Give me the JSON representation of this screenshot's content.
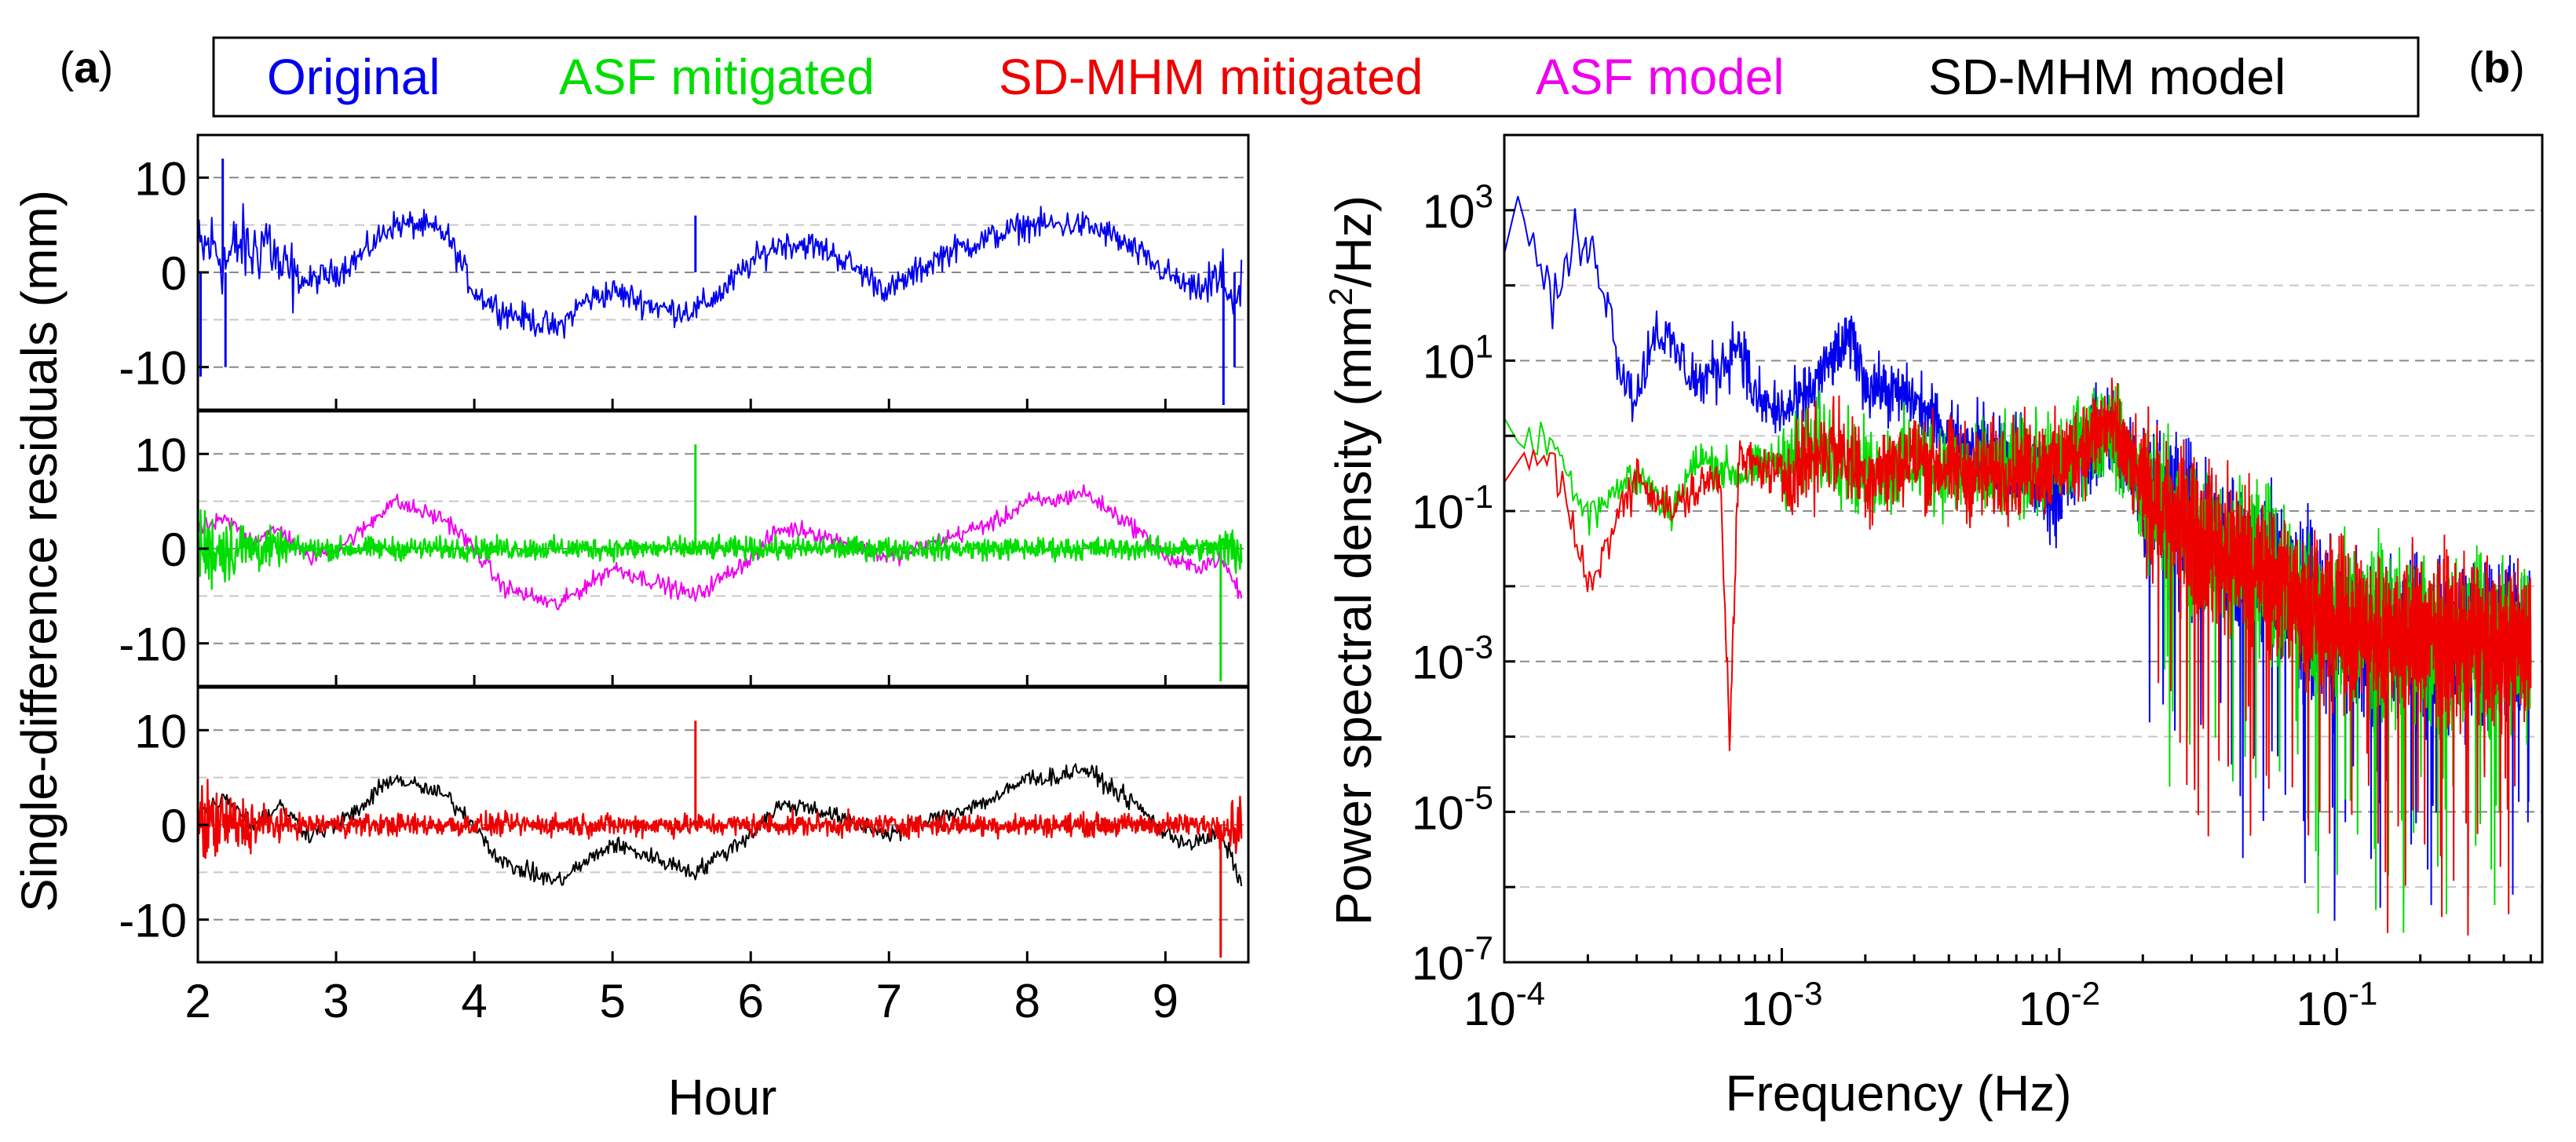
{
  "panel_labels": {
    "a": "(a)",
    "b": "(b)"
  },
  "legend": [
    {
      "name": "Original",
      "color": "#0000ee"
    },
    {
      "name": "ASF mitigated",
      "color": "#00dd00"
    },
    {
      "name": "SD-MHM mitigated",
      "color": "#ee0000"
    },
    {
      "name": "ASF model",
      "color": "#ee00ee"
    },
    {
      "name": "SD-MHM model",
      "color": "#000000"
    }
  ],
  "chart_data": [
    {
      "type": "line",
      "panel": "a",
      "title": "",
      "xlabel": "Hour",
      "ylabel": "Single-difference residuals (mm)",
      "xlim": [
        2,
        9.6
      ],
      "xticks": [
        "2",
        "3",
        "4",
        "5",
        "6",
        "7",
        "8",
        "9"
      ],
      "xtick_values": [
        2,
        3,
        4,
        5,
        6,
        7,
        8,
        9
      ],
      "ylim": [
        -14.5,
        14.5
      ],
      "yticks": [
        "10",
        "0",
        "-10"
      ],
      "ytick_values": [
        10,
        0,
        -10
      ],
      "grid": true,
      "subplots": [
        {
          "series": [
            {
              "name": "Original",
              "color": "#0000ee",
              "x": [
                2.0,
                2.1,
                2.2,
                2.3,
                2.4,
                2.5,
                2.6,
                2.8,
                3.0,
                3.2,
                3.4,
                3.6,
                3.8,
                3.9,
                4.0,
                4.2,
                4.4,
                4.6,
                4.8,
                5.0,
                5.2,
                5.4,
                5.6,
                5.8,
                6.0,
                6.2,
                6.4,
                6.6,
                6.8,
                7.0,
                7.2,
                7.4,
                7.6,
                7.8,
                8.0,
                8.2,
                8.4,
                8.6,
                8.8,
                9.0,
                9.2,
                9.4,
                9.55
              ],
              "y": [
                2,
                3,
                1,
                3,
                2,
                4,
                0,
                -1,
                0,
                2,
                5,
                5,
                4,
                1,
                -2,
                -4,
                -5,
                -6,
                -3,
                -2,
                -3,
                -4,
                -4,
                -2,
                1,
                3,
                3,
                2,
                0,
                -2,
                0,
                2,
                3,
                4,
                5,
                5,
                5,
                4,
                2,
                0,
                -2,
                -1,
                -3
              ]
            },
            {
              "name": "spikes",
              "color": "#0000ee",
              "x": [
                2.02,
                2.18,
                2.2,
                5.6,
                9.42,
                9.5
              ],
              "y": [
                -11,
                12,
                -10,
                6,
                -14,
                -10
              ]
            }
          ]
        },
        {
          "series": [
            {
              "name": "ASF model",
              "color": "#ee00ee",
              "x": [
                2.0,
                2.2,
                2.4,
                2.6,
                2.8,
                3.0,
                3.2,
                3.4,
                3.6,
                3.8,
                4.0,
                4.2,
                4.4,
                4.6,
                4.8,
                5.0,
                5.2,
                5.4,
                5.6,
                5.8,
                6.0,
                6.2,
                6.4,
                6.6,
                6.8,
                7.0,
                7.2,
                7.4,
                7.6,
                7.8,
                8.0,
                8.2,
                8.4,
                8.6,
                8.8,
                9.0,
                9.2,
                9.4,
                9.55
              ],
              "y": [
                2,
                3,
                1,
                2,
                -1,
                0,
                2,
                5,
                4,
                3,
                0,
                -4,
                -5,
                -6,
                -4,
                -2,
                -3,
                -4,
                -5,
                -3,
                -1,
                2,
                2,
                1,
                0,
                -1,
                0,
                1,
                2,
                3,
                5,
                5,
                6,
                4,
                2,
                -1,
                -2,
                -1,
                -5
              ]
            },
            {
              "name": "ASF mitigated",
              "color": "#00dd00",
              "x": [
                2.0,
                9.55
              ],
              "y": [
                0,
                0
              ],
              "noise_amplitude": [
                4,
                1
              ]
            },
            {
              "name": "spikes",
              "color": "#00dd00",
              "x": [
                5.6,
                9.4
              ],
              "y": [
                11,
                -14
              ]
            }
          ]
        },
        {
          "series": [
            {
              "name": "SD-MHM model",
              "color": "#000000",
              "x": [
                2.0,
                2.2,
                2.4,
                2.6,
                2.8,
                3.0,
                3.2,
                3.4,
                3.6,
                3.8,
                4.0,
                4.2,
                4.4,
                4.6,
                4.8,
                5.0,
                5.2,
                5.4,
                5.6,
                5.8,
                6.0,
                6.2,
                6.4,
                6.6,
                6.8,
                7.0,
                7.2,
                7.4,
                7.6,
                7.8,
                8.0,
                8.2,
                8.4,
                8.6,
                8.8,
                9.0,
                9.2,
                9.4,
                9.55
              ],
              "y": [
                1,
                3,
                0,
                2,
                -1,
                0,
                2,
                5,
                4,
                3,
                0,
                -4,
                -5,
                -6,
                -4,
                -2,
                -3,
                -4,
                -5,
                -3,
                -1,
                2,
                2,
                1,
                0,
                -1,
                0,
                1,
                2,
                3,
                5,
                5,
                6,
                4,
                2,
                -1,
                -2,
                -1,
                -6
              ]
            },
            {
              "name": "SD-MHM mitigated",
              "color": "#ee0000",
              "x": [
                2.0,
                9.55
              ],
              "y": [
                0,
                0
              ],
              "noise_amplitude": [
                4,
                1
              ]
            },
            {
              "name": "spikes",
              "color": "#ee0000",
              "x": [
                5.6,
                9.4
              ],
              "y": [
                11,
                -14
              ]
            }
          ]
        }
      ]
    },
    {
      "type": "line",
      "panel": "b",
      "title": "",
      "xlabel": "Frequency (Hz)",
      "ylabel_main": "Power spectral density (mm",
      "ylabel_sup": "2",
      "ylabel_tail": "/Hz)",
      "xscale": "log",
      "yscale": "log",
      "xlim": [
        0.0001,
        0.55
      ],
      "ylim": [
        1e-07,
        10000
      ],
      "xticks": [
        {
          "base": "10",
          "exp": "-4",
          "value": 0.0001
        },
        {
          "base": "10",
          "exp": "-3",
          "value": 0.001
        },
        {
          "base": "10",
          "exp": "-2",
          "value": 0.01
        },
        {
          "base": "10",
          "exp": "-1",
          "value": 0.1
        }
      ],
      "yticks": [
        {
          "base": "10",
          "exp": "3",
          "value": 1000
        },
        {
          "base": "10",
          "exp": "1",
          "value": 10
        },
        {
          "base": "10",
          "exp": "-1",
          "value": 0.1
        },
        {
          "base": "10",
          "exp": "-3",
          "value": 0.001
        },
        {
          "base": "10",
          "exp": "-5",
          "value": 1e-05
        },
        {
          "base": "10",
          "exp": "-7",
          "value": 1e-07
        }
      ],
      "grid": true,
      "series": [
        {
          "name": "Original",
          "color": "#0000ee",
          "x": [
            0.0001,
            0.00012,
            0.00015,
            0.00018,
            0.00022,
            0.00026,
            0.0003,
            0.00035,
            0.0004,
            0.0005,
            0.0006,
            0.0007,
            0.0008,
            0.001,
            0.0012,
            0.0015,
            0.0018,
            0.002,
            0.003,
            0.004,
            0.006,
            0.008,
            0.01,
            0.015,
            0.02,
            0.03,
            0.05,
            0.08,
            0.1,
            0.2,
            0.3,
            0.5
          ],
          "y": [
            700,
            900,
            50,
            400,
            200,
            10,
            3,
            30,
            15,
            5,
            8,
            20,
            3,
            2,
            3,
            10,
            20,
            5,
            3,
            1,
            0.5,
            0.3,
            0.2,
            1.5,
            0.2,
            0.05,
            0.02,
            0.005,
            0.003,
            0.002,
            0.002,
            0.002
          ]
        },
        {
          "name": "ASF mitigated",
          "color": "#00dd00",
          "x": [
            0.0001,
            0.00015,
            0.0002,
            0.0003,
            0.0004,
            0.0005,
            0.0007,
            0.001,
            0.0015,
            0.002,
            0.003,
            0.005,
            0.008,
            0.01,
            0.015,
            0.02,
            0.03,
            0.05,
            0.08,
            0.1,
            0.2,
            0.3,
            0.5
          ],
          "y": [
            1,
            0.8,
            0.1,
            0.3,
            0.1,
            0.5,
            0.3,
            0.5,
            0.8,
            0.3,
            0.5,
            0.3,
            0.4,
            0.4,
            1.5,
            0.2,
            0.05,
            0.02,
            0.005,
            0.003,
            0.002,
            0.002,
            0.002
          ]
        },
        {
          "name": "SD-MHM mitigated",
          "color": "#ee0000",
          "x": [
            0.0001,
            0.00015,
            0.0002,
            0.0003,
            0.0004,
            0.0005,
            0.0006,
            0.00065,
            0.0007,
            0.001,
            0.0015,
            0.002,
            0.003,
            0.005,
            0.008,
            0.01,
            0.015,
            0.02,
            0.03,
            0.05,
            0.08,
            0.1,
            0.2,
            0.3,
            0.5
          ],
          "y": [
            0.3,
            0.5,
            0.01,
            0.3,
            0.1,
            0.2,
            0.3,
            0.0001,
            0.5,
            0.3,
            0.8,
            0.3,
            0.5,
            0.3,
            0.4,
            0.4,
            1.5,
            0.2,
            0.05,
            0.02,
            0.005,
            0.003,
            0.002,
            0.002,
            0.002
          ]
        }
      ]
    }
  ]
}
